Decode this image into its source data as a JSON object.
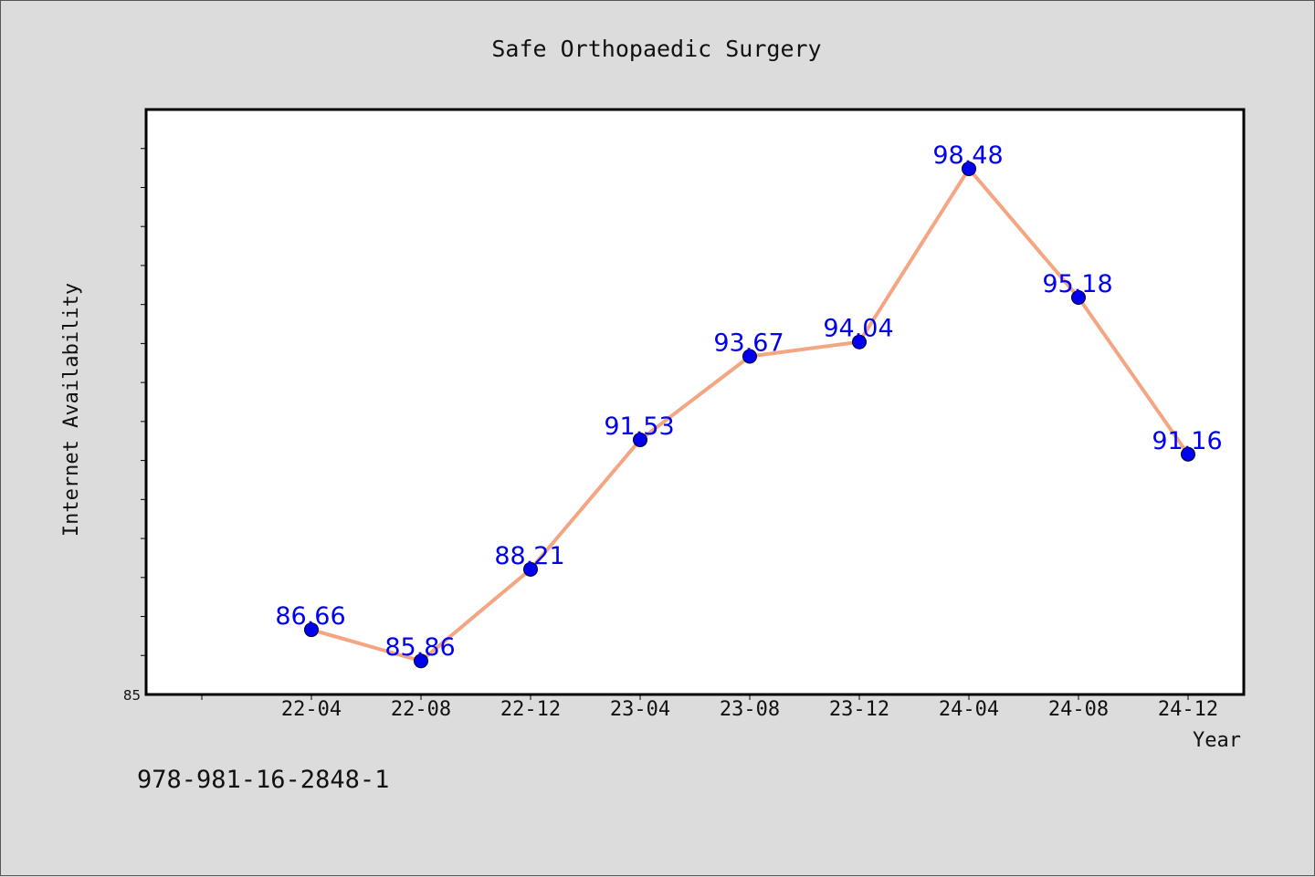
{
  "chart_data": {
    "type": "line",
    "title": "Safe Orthopaedic Surgery",
    "xlabel": "Year",
    "ylabel": "Internet Availability",
    "categories": [
      "22-04",
      "22-08",
      "22-12",
      "23-04",
      "23-08",
      "23-12",
      "24-04",
      "24-08",
      "24-12"
    ],
    "series": [
      {
        "values": [
          86.66,
          85.86,
          88.21,
          91.53,
          93.67,
          94.04,
          98.48,
          95.18,
          91.16
        ]
      }
    ],
    "data_labels": [
      "86.66",
      "85.86",
      "88.21",
      "91.53",
      "93.67",
      "94.04",
      "98.48",
      "95.18",
      "91.16"
    ],
    "ylim": [
      85,
      100
    ],
    "y_tick_step": 1,
    "y_min_label": "85",
    "grid": false,
    "legend": "none",
    "colors": {
      "line": "#f4a582",
      "marker": "#0000ee",
      "data_label": "#0000ee",
      "plot_background": "#ffffff",
      "page_background": "#dcdcdc"
    }
  },
  "footer": {
    "isbn": "978-981-16-2848-1"
  }
}
